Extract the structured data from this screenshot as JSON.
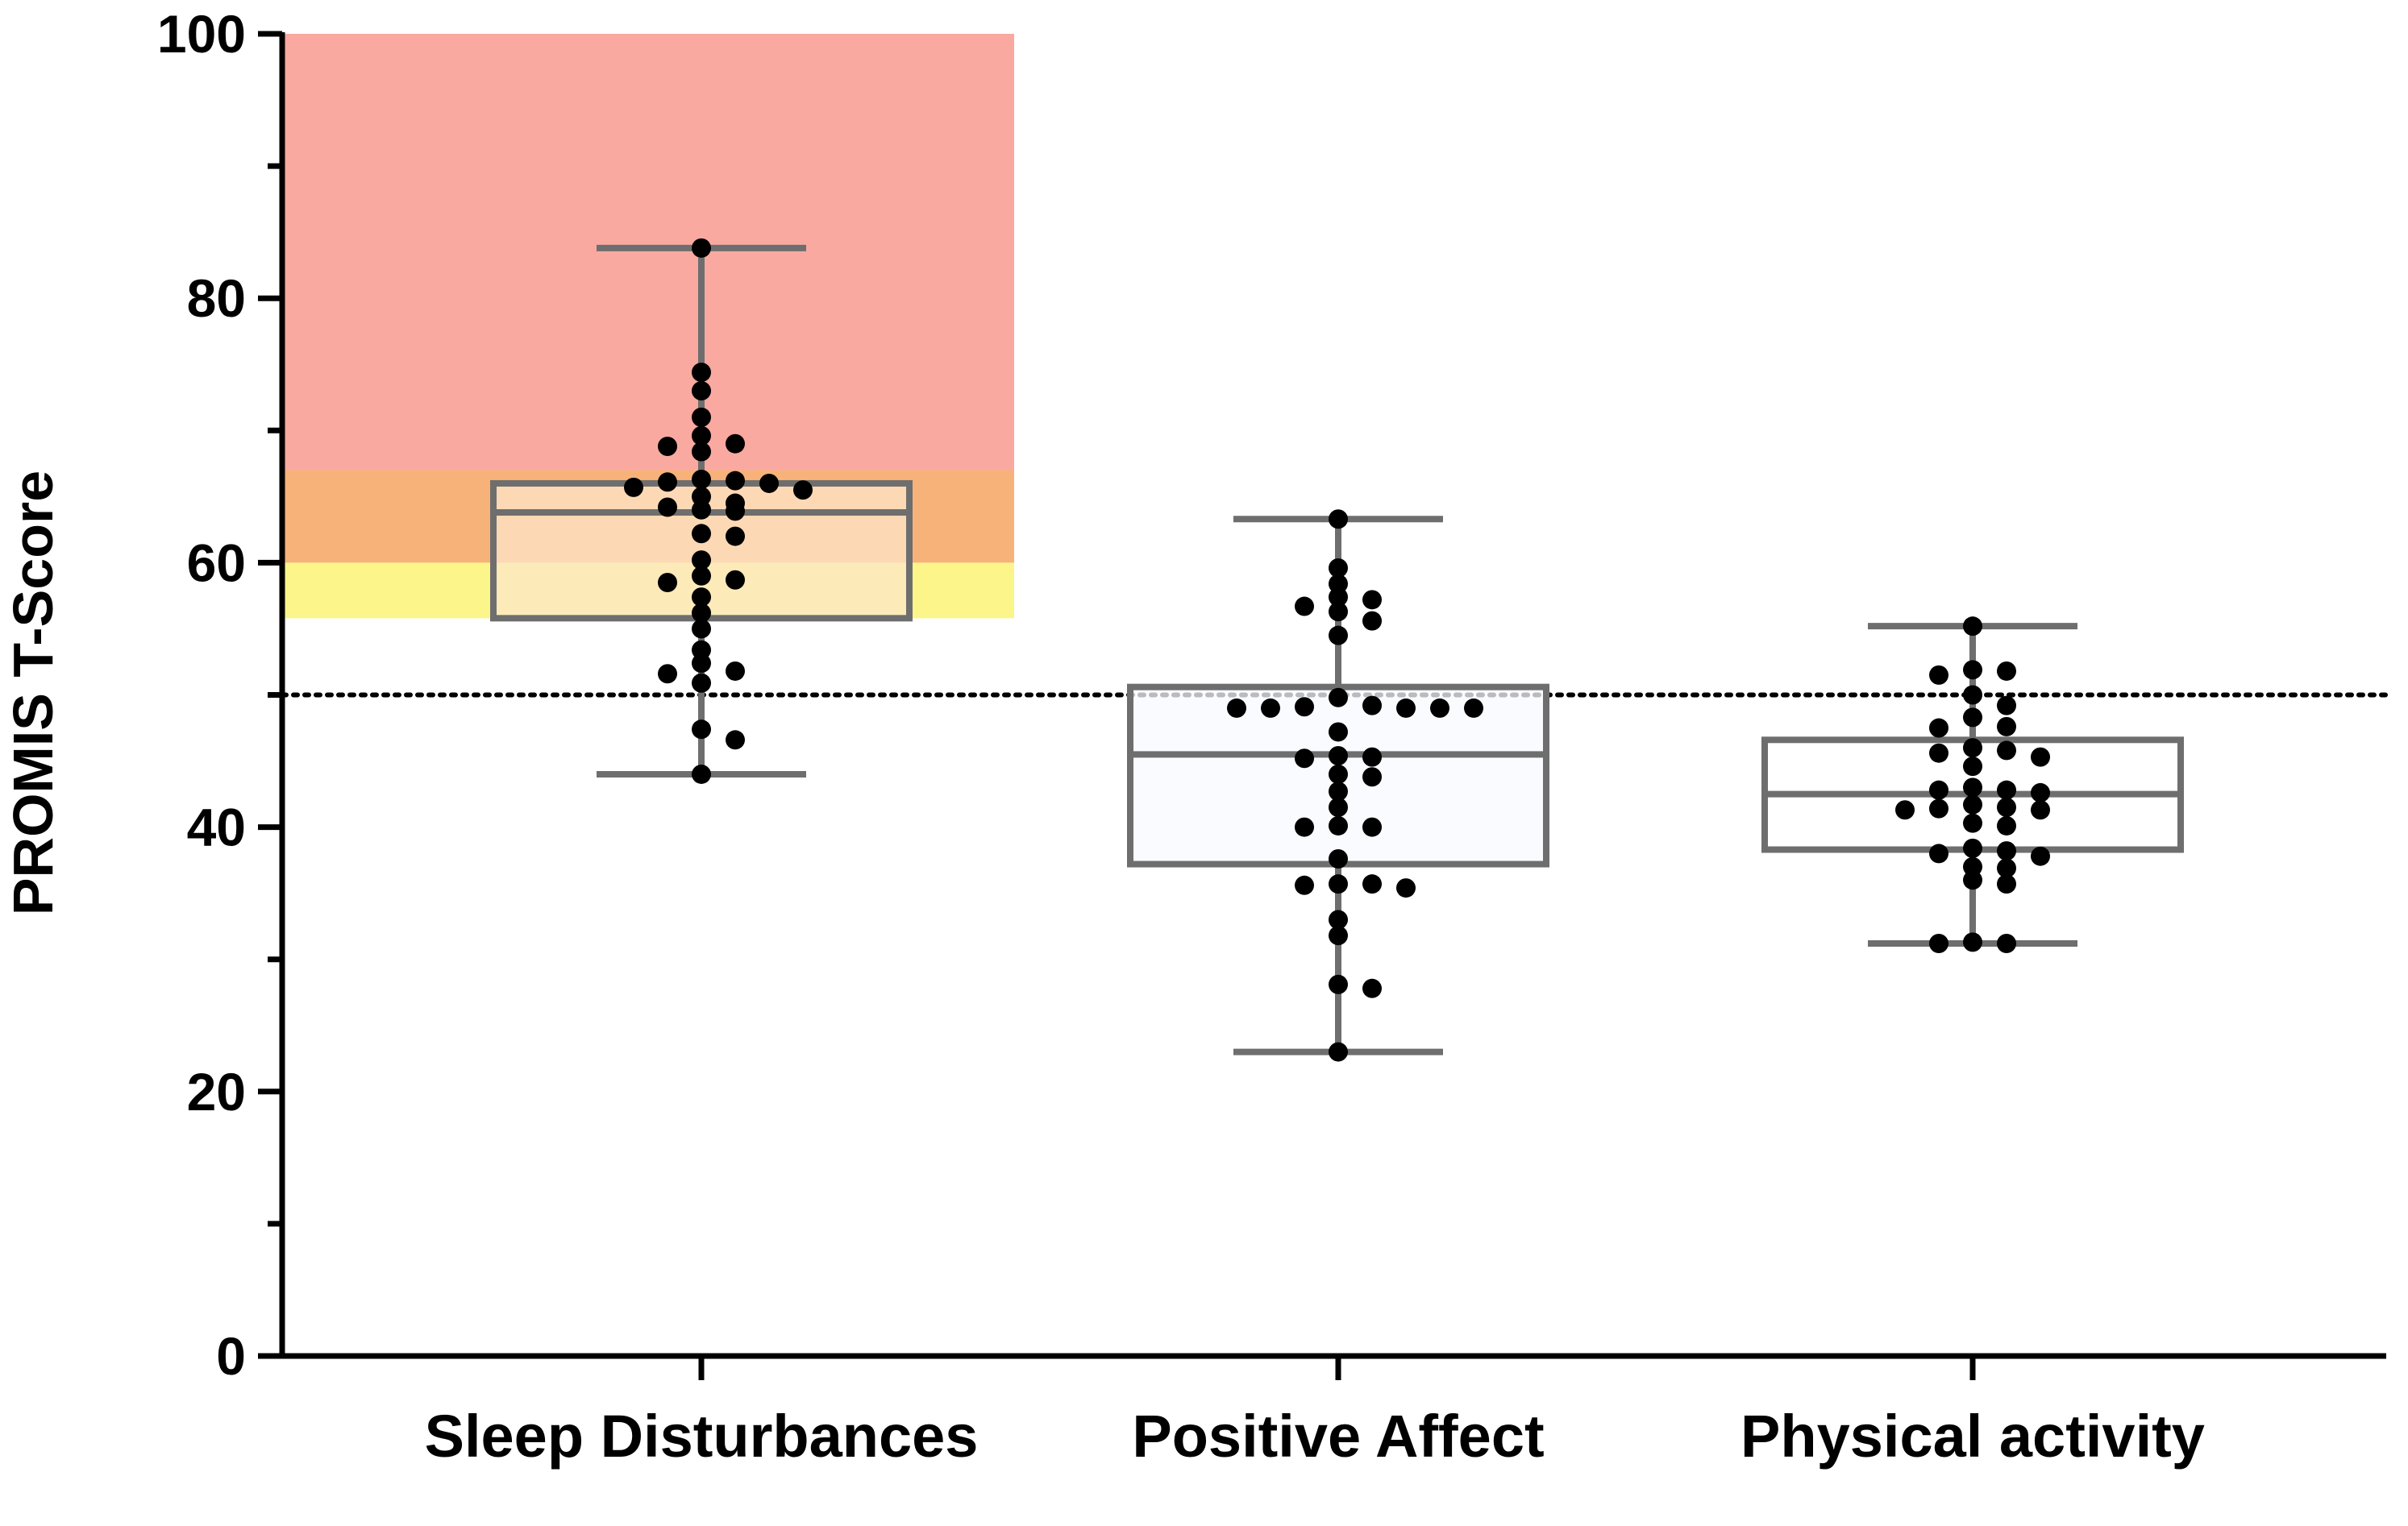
{
  "chart_data": {
    "type": "box",
    "ylabel": "PROMIS T-Score",
    "ylim": [
      0,
      100
    ],
    "yticks": [
      0,
      20,
      40,
      60,
      80,
      100
    ],
    "yticks_minor": [
      10,
      30,
      50,
      70,
      90
    ],
    "reference_line": {
      "value": 50,
      "style": "dotted",
      "color": "#000000"
    },
    "shaded_bands": [
      {
        "category": "Sleep Disturbances",
        "from": 67,
        "to": 100,
        "color": "#f9a9a0"
      },
      {
        "category": "Sleep Disturbances",
        "from": 60,
        "to": 67,
        "color": "#f7b27a"
      },
      {
        "category": "Sleep Disturbances",
        "from": 55.8,
        "to": 60,
        "color": "#fbf58a"
      }
    ],
    "categories": [
      "Sleep Disturbances",
      "Positive Affect",
      "Physical activity"
    ],
    "boxes": [
      {
        "name": "Sleep Disturbances",
        "min": 44.0,
        "q1": 55.8,
        "median": 63.8,
        "q3": 66.0,
        "max": 83.8,
        "fill": "#fde6c8",
        "points": [
          83.8,
          74.4,
          73.0,
          71.0,
          69.0,
          68.8,
          68.4,
          69.6,
          66.3,
          66.2,
          66.1,
          66.0,
          65.7,
          65.5,
          65.0,
          64.5,
          64.2,
          64.0,
          63.9,
          62.2,
          62.0,
          60.2,
          59.0,
          58.7,
          58.5,
          57.4,
          56.2,
          55.0,
          53.4,
          52.4,
          51.8,
          51.6,
          50.9,
          47.4,
          46.6,
          44.0
        ]
      },
      {
        "name": "Positive Affect",
        "min": 23.0,
        "q1": 37.2,
        "median": 45.5,
        "q3": 50.6,
        "max": 63.3,
        "fill": "#f8f9ff",
        "points": [
          63.3,
          59.6,
          58.4,
          57.4,
          57.2,
          56.7,
          56.3,
          55.6,
          54.5,
          49.8,
          49.2,
          49.1,
          49.0,
          49.0,
          49.0,
          49.0,
          49.0,
          47.2,
          45.4,
          45.3,
          45.2,
          44.0,
          43.8,
          42.7,
          41.5,
          40.1,
          40.0,
          40.0,
          37.6,
          35.7,
          35.7,
          35.6,
          35.4,
          33.0,
          31.8,
          28.1,
          27.8,
          23.0
        ]
      },
      {
        "name": "Physical activity",
        "min": 31.2,
        "q1": 38.3,
        "median": 42.5,
        "q3": 46.6,
        "max": 55.2,
        "fill": "#ffffff",
        "points": [
          55.2,
          51.9,
          51.8,
          51.5,
          50.0,
          49.2,
          48.3,
          47.6,
          47.5,
          46.0,
          45.8,
          45.6,
          45.3,
          44.6,
          43.0,
          42.8,
          42.8,
          42.6,
          41.7,
          41.5,
          41.4,
          41.3,
          41.3,
          40.3,
          40.1,
          38.4,
          38.2,
          38.0,
          37.8,
          37.0,
          36.9,
          36.0,
          35.7,
          31.3,
          31.2,
          31.2
        ]
      }
    ]
  }
}
